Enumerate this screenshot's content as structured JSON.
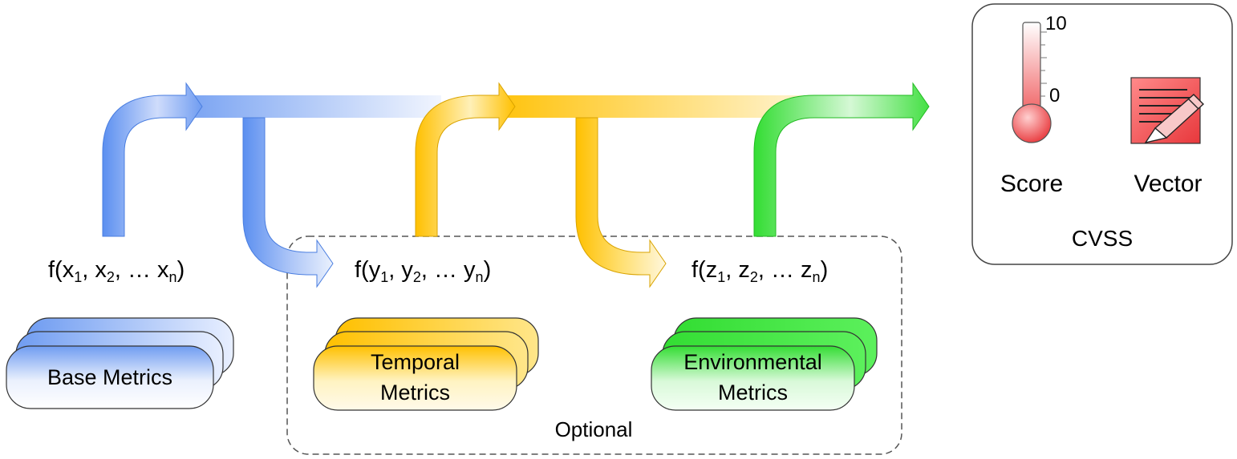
{
  "functions": {
    "base": {
      "fn": "f",
      "args": [
        {
          "v": "x",
          "s": "1",
          "sep": ", "
        },
        {
          "v": "x",
          "s": "2",
          "sep": ", … "
        },
        {
          "v": "x",
          "s": "n",
          "sep": ""
        }
      ]
    },
    "temporal": {
      "fn": "f",
      "args": [
        {
          "v": "y",
          "s": "1",
          "sep": ", "
        },
        {
          "v": "y",
          "s": "2",
          "sep": ", … "
        },
        {
          "v": "y",
          "s": "n",
          "sep": ""
        }
      ]
    },
    "environmental": {
      "fn": "f",
      "args": [
        {
          "v": "z",
          "s": "1",
          "sep": ", "
        },
        {
          "v": "z",
          "s": "2",
          "sep": ", … "
        },
        {
          "v": "z",
          "s": "n",
          "sep": ""
        }
      ]
    }
  },
  "metrics": {
    "base": {
      "label": "Base Metrics",
      "color": "#5b8ff0"
    },
    "temporal": {
      "line1": "Temporal",
      "line2": "Metrics",
      "color": "#ffc000"
    },
    "environmental": {
      "line1": "Environmental",
      "line2": "Metrics",
      "color": "#33dd33"
    }
  },
  "optional_label": "Optional",
  "cvss": {
    "title": "CVSS",
    "score_label": "Score",
    "vector_label": "Vector",
    "scale_max": "10",
    "scale_min": "0",
    "score_icon": "thermometer-icon",
    "vector_icon": "document-pen-icon",
    "accent": "#e8383c"
  }
}
